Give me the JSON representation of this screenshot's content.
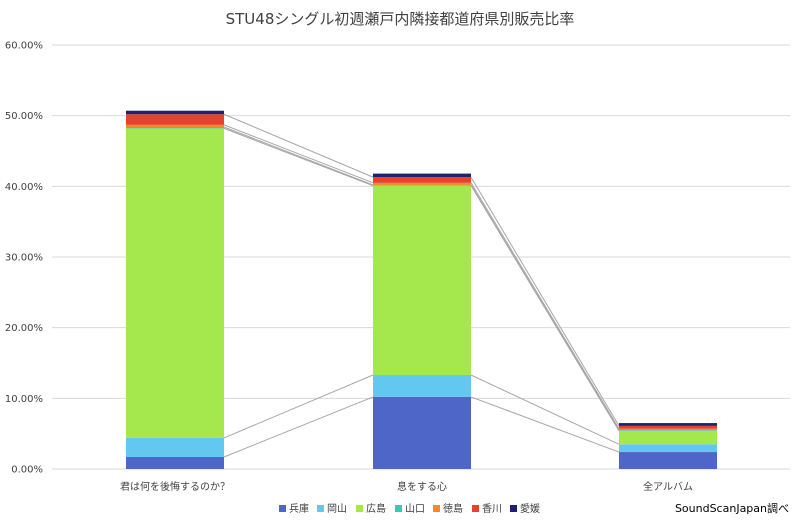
{
  "chart_data": {
    "type": "bar",
    "stacked": true,
    "title": "STU48シングル初週瀬戸内隣接都道府県別販売比率",
    "categories": [
      "君は何を後悔するのか？",
      "息をする心",
      "全アルバム"
    ],
    "ylim": [
      0,
      0.6
    ],
    "yticks": [
      "0.00%",
      "10.00%",
      "20.00%",
      "30.00%",
      "40.00%",
      "50.00%",
      "60.00%"
    ],
    "grid": true,
    "legend_position": "bottom",
    "series": [
      {
        "name": "兵庫",
        "color": "#4f66c9",
        "values": [
          0.017,
          0.102,
          0.024
        ]
      },
      {
        "name": "岡山",
        "color": "#62c8f0",
        "values": [
          0.027,
          0.031,
          0.011
        ]
      },
      {
        "name": "広島",
        "color": "#a4e84e",
        "values": [
          0.438,
          0.268,
          0.019
        ]
      },
      {
        "name": "山口",
        "color": "#3cc8b0",
        "values": [
          0.002,
          0.001,
          0.001
        ]
      },
      {
        "name": "徳島",
        "color": "#f08a2a",
        "values": [
          0.003,
          0.003,
          0.002
        ]
      },
      {
        "name": "香川",
        "color": "#e8432a",
        "values": [
          0.015,
          0.008,
          0.004
        ]
      },
      {
        "name": "愛媛",
        "color": "#1c2170",
        "values": [
          0.005,
          0.005,
          0.004
        ]
      }
    ],
    "source_note": "SoundScanJapan調べ"
  }
}
